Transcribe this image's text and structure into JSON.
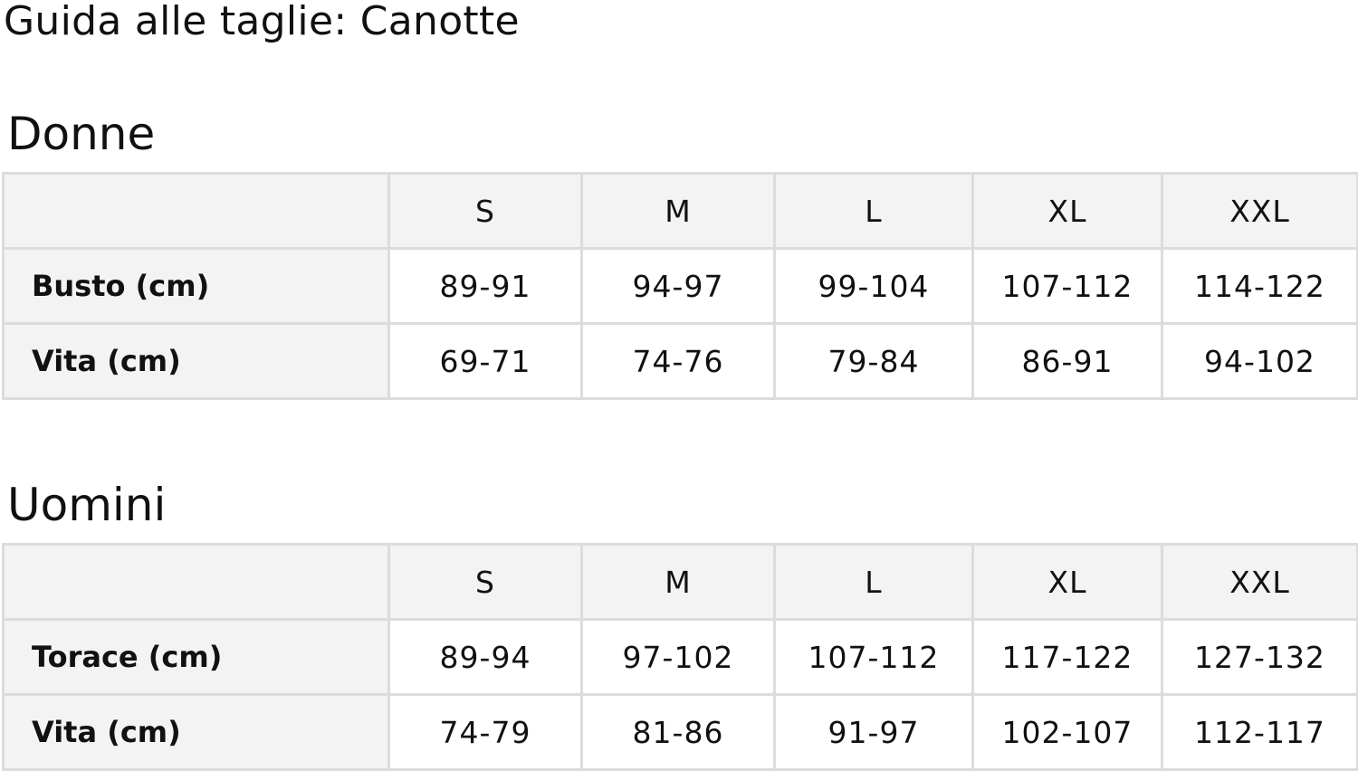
{
  "title": "Guida alle taglie: Canotte",
  "sizes": [
    "S",
    "M",
    "L",
    "XL",
    "XXL"
  ],
  "women": {
    "heading": "Donne",
    "rows": [
      {
        "label": "Busto (cm)",
        "values": [
          "89-91",
          "94-97",
          "99-104",
          "107-112",
          "114-122"
        ]
      },
      {
        "label": "Vita (cm)",
        "values": [
          "69-71",
          "74-76",
          "79-84",
          "86-91",
          "94-102"
        ]
      }
    ]
  },
  "men": {
    "heading": "Uomini",
    "rows": [
      {
        "label": "Torace (cm)",
        "values": [
          "89-94",
          "97-102",
          "107-112",
          "117-122",
          "127-132"
        ]
      },
      {
        "label": "Vita (cm)",
        "values": [
          "74-79",
          "81-86",
          "91-97",
          "102-107",
          "112-117"
        ]
      }
    ]
  }
}
